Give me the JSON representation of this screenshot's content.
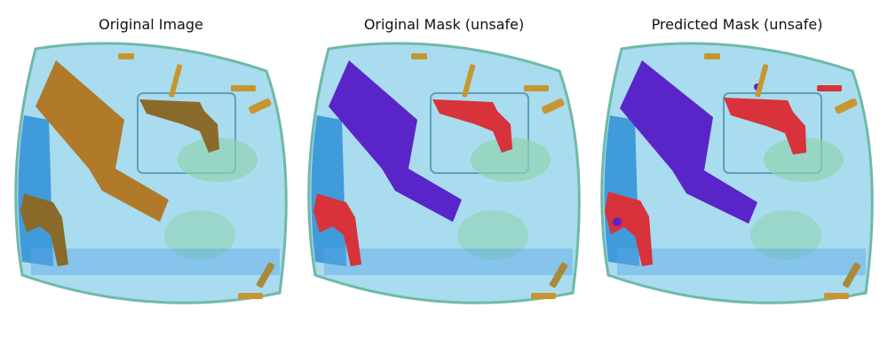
{
  "panels": [
    {
      "title": "Original Image",
      "kind": "original"
    },
    {
      "title": "Original Mask (unsafe)",
      "kind": "mask"
    },
    {
      "title": "Predicted Mask (unsafe)",
      "kind": "predicted"
    }
  ],
  "colors": {
    "bag_fill": "#a9dcef",
    "bag_edge": "#6fb9a8",
    "bag_side": "#2e8fd6",
    "inner_green": "#8fd3b0",
    "knife_original": "#b07a2a",
    "gun_original": "#8a6a2a",
    "knife_mask": "#5a25c8",
    "gun_mask": "#d8323a",
    "bullet": "#c8962f"
  }
}
